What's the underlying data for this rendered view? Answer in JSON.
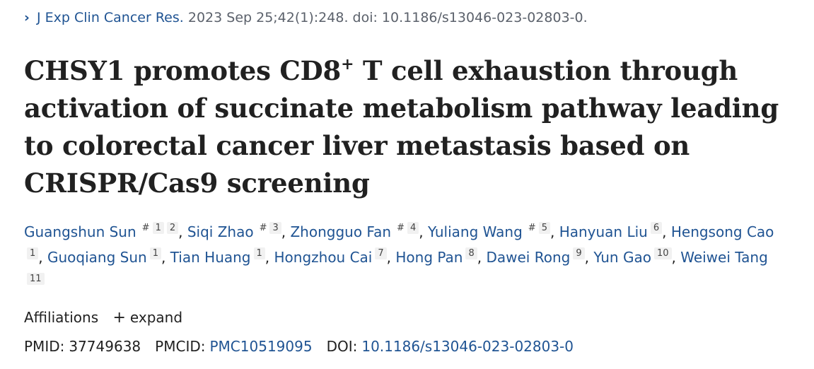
{
  "citation": {
    "journal": "J Exp Clin Cancer Res.",
    "details": "2023 Sep 25;42(1):248. doi: 10.1186/s13046-023-02803-0."
  },
  "title": {
    "part1": "CHSY1 promotes CD8",
    "superscript": "+",
    "part2": " T cell exhaustion through activation of succinate metabolism pathway leading to colorectal cancer liver metastasis based on CRISPR/Cas9 screening"
  },
  "authors": [
    {
      "name": "Guangshun Sun",
      "equal": "#",
      "affils": [
        "1",
        "2"
      ]
    },
    {
      "name": "Siqi Zhao",
      "equal": "#",
      "affils": [
        "3"
      ]
    },
    {
      "name": "Zhongguo Fan",
      "equal": "#",
      "affils": [
        "4"
      ]
    },
    {
      "name": "Yuliang Wang",
      "equal": "#",
      "affils": [
        "5"
      ]
    },
    {
      "name": "Hanyuan Liu",
      "equal": "",
      "affils": [
        "6"
      ]
    },
    {
      "name": "Hengsong Cao",
      "equal": "",
      "affils": [
        "1"
      ]
    },
    {
      "name": "Guoqiang Sun",
      "equal": "",
      "affils": [
        "1"
      ]
    },
    {
      "name": "Tian Huang",
      "equal": "",
      "affils": [
        "1"
      ]
    },
    {
      "name": "Hongzhou Cai",
      "equal": "",
      "affils": [
        "7"
      ]
    },
    {
      "name": "Hong Pan",
      "equal": "",
      "affils": [
        "8"
      ]
    },
    {
      "name": "Dawei Rong",
      "equal": "",
      "affils": [
        "9"
      ]
    },
    {
      "name": "Yun Gao",
      "equal": "",
      "affils": [
        "10"
      ]
    },
    {
      "name": "Weiwei Tang",
      "equal": "",
      "affils": [
        "11"
      ]
    }
  ],
  "affiliations": {
    "label": "Affiliations",
    "expand_label": "expand"
  },
  "identifiers": {
    "pmid_label": "PMID:",
    "pmid": "37749638",
    "pmcid_label": "PMCID:",
    "pmcid": "PMC10519095",
    "doi_label": "DOI:",
    "doi": "10.1186/s13046-023-02803-0"
  },
  "colors": {
    "link": "#205493",
    "text": "#212121",
    "muted": "#5b616b"
  }
}
